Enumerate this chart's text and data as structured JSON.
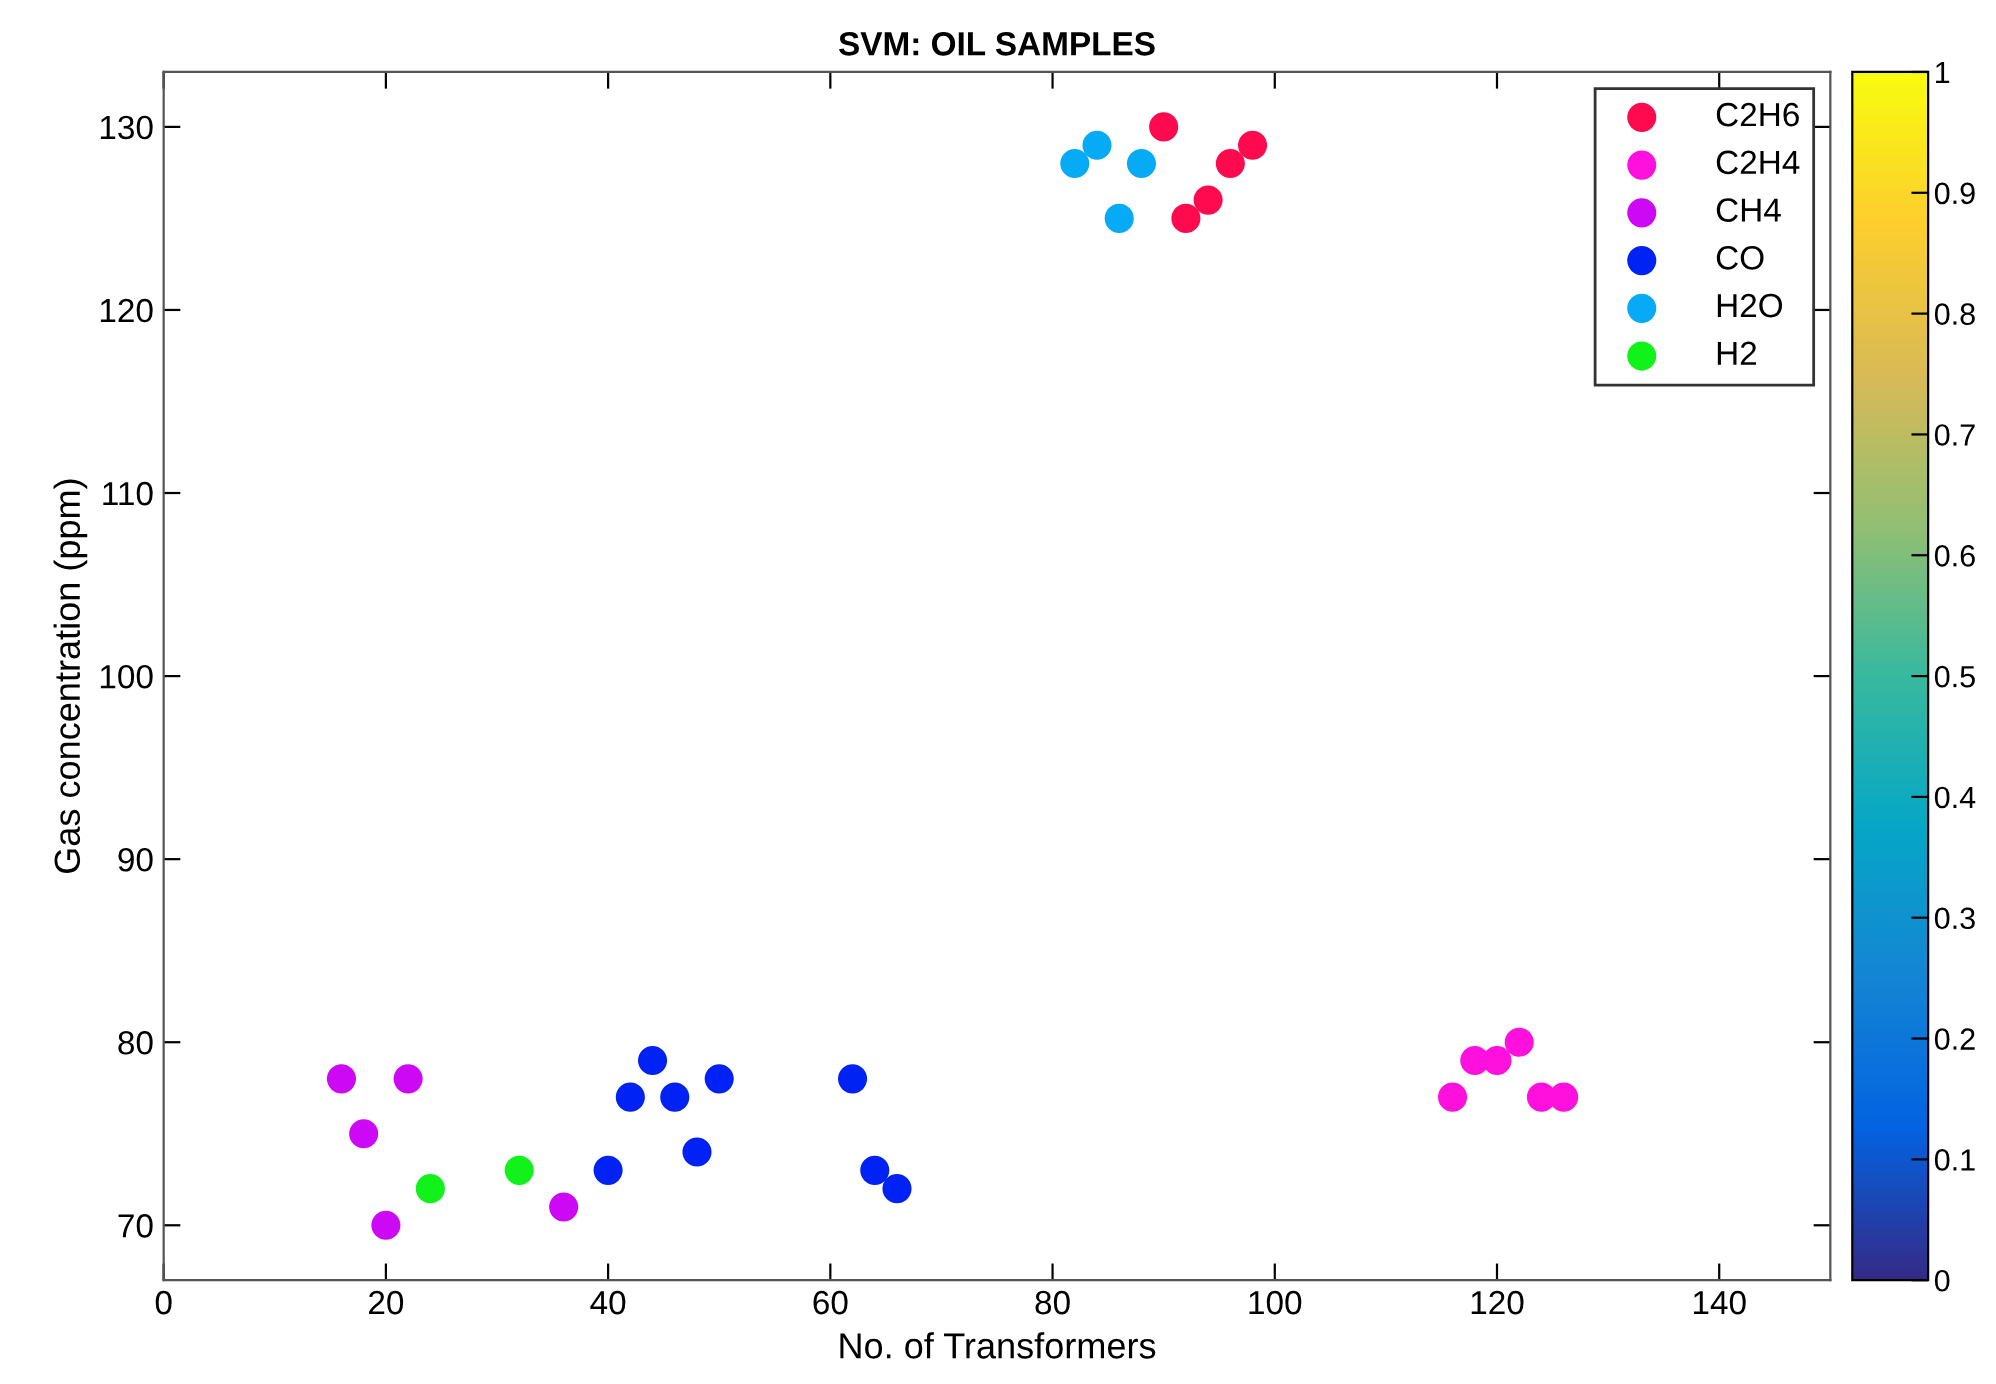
{
  "chart_data": {
    "type": "scatter",
    "title": "SVM: OIL SAMPLES",
    "xlabel": "No. of Transformers",
    "ylabel": "Gas concentration (ppm)",
    "xlim": [
      0,
      150
    ],
    "ylim": [
      67,
      133
    ],
    "xticks": [
      0,
      20,
      40,
      60,
      80,
      100,
      120,
      140
    ],
    "yticks": [
      70,
      80,
      90,
      100,
      110,
      120,
      130
    ],
    "clim": [
      0,
      1
    ],
    "cticks": [
      0,
      0.1,
      0.2,
      0.3,
      0.4,
      0.5,
      0.6,
      0.7,
      0.8,
      0.9,
      1
    ],
    "legend": "top right",
    "grid": false,
    "marker": "circle",
    "series": [
      {
        "name": "C2H6",
        "color": "#ff0a4e",
        "x": [
          90,
          98,
          96,
          94,
          92
        ],
        "values": [
          130,
          129,
          128,
          126,
          125
        ]
      },
      {
        "name": "C2H4",
        "color": "#ff10dc",
        "x": [
          116,
          118,
          120,
          122,
          124,
          126
        ],
        "values": [
          77,
          79,
          79,
          80,
          77,
          77
        ]
      },
      {
        "name": "CH4",
        "color": "#cc08f4",
        "x": [
          16,
          18,
          20,
          22,
          36
        ],
        "values": [
          78,
          75,
          70,
          78,
          71
        ]
      },
      {
        "name": "CO",
        "color": "#0022f5",
        "x": [
          40,
          42,
          44,
          46,
          48,
          50,
          62,
          64,
          66
        ],
        "values": [
          73,
          77,
          79,
          77,
          74,
          78,
          78,
          73,
          72
        ]
      },
      {
        "name": "H2O",
        "color": "#06aaf5",
        "x": [
          82,
          84,
          88,
          86
        ],
        "values": [
          128,
          129,
          128,
          125
        ]
      },
      {
        "name": "H2",
        "color": "#10f21a",
        "x": [
          24,
          32
        ],
        "values": [
          72,
          73
        ]
      }
    ]
  }
}
